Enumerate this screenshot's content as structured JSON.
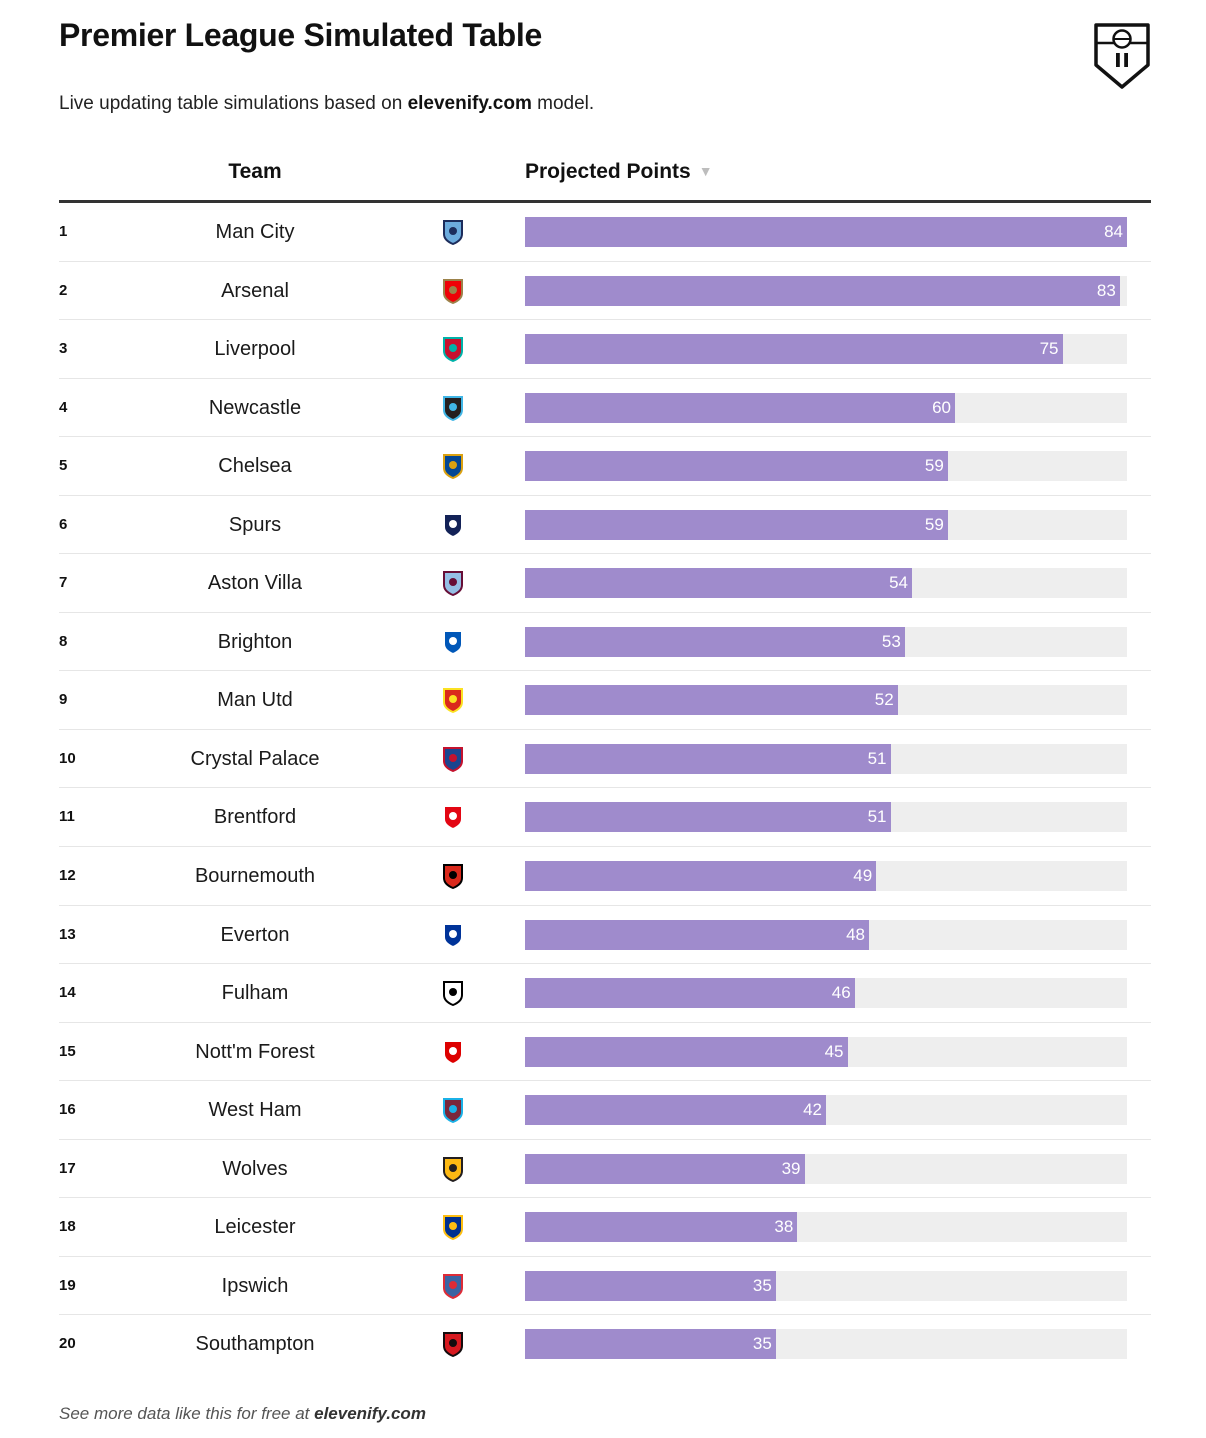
{
  "header": {
    "title": "Premier League Simulated Table",
    "subtitle_prefix": "Live updating table simulations based on ",
    "subtitle_brand": "elevenify.com",
    "subtitle_suffix": " model."
  },
  "columns": {
    "team": "Team",
    "points": "Projected Points",
    "sort_icon": "sort-descending-icon"
  },
  "footer": {
    "prefix": "See more data like this for free at ",
    "brand": "elevenify.com"
  },
  "colors": {
    "bar": "#9f8bcc",
    "track": "#eeeeee",
    "text": "#111111"
  },
  "chart_data": {
    "type": "bar",
    "orientation": "horizontal",
    "title": "Premier League Simulated Table",
    "ylabel": "Team",
    "xlabel": "Projected Points",
    "xlim": [
      0,
      84
    ],
    "rows": [
      {
        "rank": "1",
        "team": "Man City",
        "points": 84,
        "crest": "man-city-crest-icon",
        "c1": "#6cabdd",
        "c2": "#1c2c5b"
      },
      {
        "rank": "2",
        "team": "Arsenal",
        "points": 83,
        "crest": "arsenal-crest-icon",
        "c1": "#ef0107",
        "c2": "#9c824a"
      },
      {
        "rank": "3",
        "team": "Liverpool",
        "points": 75,
        "crest": "liverpool-crest-icon",
        "c1": "#c8102e",
        "c2": "#00b2a9"
      },
      {
        "rank": "4",
        "team": "Newcastle",
        "points": 60,
        "crest": "newcastle-crest-icon",
        "c1": "#241f20",
        "c2": "#41b6e6"
      },
      {
        "rank": "5",
        "team": "Chelsea",
        "points": 59,
        "crest": "chelsea-crest-icon",
        "c1": "#034694",
        "c2": "#dba111"
      },
      {
        "rank": "6",
        "team": "Spurs",
        "points": 59,
        "crest": "spurs-crest-icon",
        "c1": "#132257",
        "c2": "#ffffff"
      },
      {
        "rank": "7",
        "team": "Aston Villa",
        "points": 54,
        "crest": "aston-villa-crest-icon",
        "c1": "#95bfe5",
        "c2": "#670e36"
      },
      {
        "rank": "8",
        "team": "Brighton",
        "points": 53,
        "crest": "brighton-crest-icon",
        "c1": "#0057b8",
        "c2": "#ffffff"
      },
      {
        "rank": "9",
        "team": "Man Utd",
        "points": 52,
        "crest": "man-utd-crest-icon",
        "c1": "#da291c",
        "c2": "#fbe122"
      },
      {
        "rank": "10",
        "team": "Crystal Palace",
        "points": 51,
        "crest": "crystal-palace-crest-icon",
        "c1": "#1b458f",
        "c2": "#c4122e"
      },
      {
        "rank": "11",
        "team": "Brentford",
        "points": 51,
        "crest": "brentford-crest-icon",
        "c1": "#e30613",
        "c2": "#ffffff"
      },
      {
        "rank": "12",
        "team": "Bournemouth",
        "points": 49,
        "crest": "bournemouth-crest-icon",
        "c1": "#da291c",
        "c2": "#000000"
      },
      {
        "rank": "13",
        "team": "Everton",
        "points": 48,
        "crest": "everton-crest-icon",
        "c1": "#003399",
        "c2": "#ffffff"
      },
      {
        "rank": "14",
        "team": "Fulham",
        "points": 46,
        "crest": "fulham-crest-icon",
        "c1": "#ffffff",
        "c2": "#000000"
      },
      {
        "rank": "15",
        "team": "Nott'm Forest",
        "points": 45,
        "crest": "nottm-forest-crest-icon",
        "c1": "#dd0000",
        "c2": "#ffffff"
      },
      {
        "rank": "16",
        "team": "West Ham",
        "points": 42,
        "crest": "west-ham-crest-icon",
        "c1": "#7a263a",
        "c2": "#1bb1e7"
      },
      {
        "rank": "17",
        "team": "Wolves",
        "points": 39,
        "crest": "wolves-crest-icon",
        "c1": "#fdb913",
        "c2": "#231f20"
      },
      {
        "rank": "18",
        "team": "Leicester",
        "points": 38,
        "crest": "leicester-crest-icon",
        "c1": "#003090",
        "c2": "#fdbe11"
      },
      {
        "rank": "19",
        "team": "Ipswich",
        "points": 35,
        "crest": "ipswich-crest-icon",
        "c1": "#3a64a3",
        "c2": "#de2c37"
      },
      {
        "rank": "20",
        "team": "Southampton",
        "points": 35,
        "crest": "southampton-crest-icon",
        "c1": "#d71920",
        "c2": "#130c0e"
      }
    ]
  }
}
